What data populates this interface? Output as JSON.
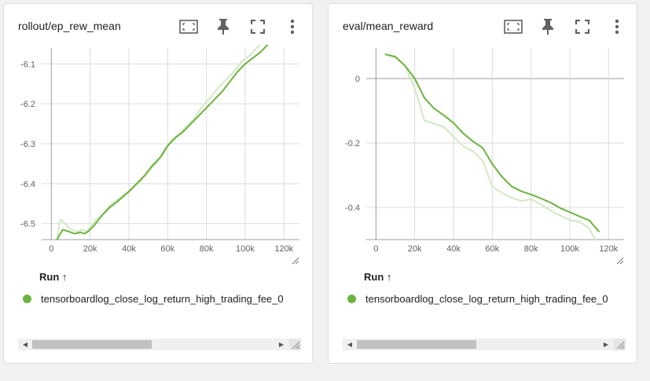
{
  "colors": {
    "series": "#6db33f",
    "series_light": "#d3e8c4",
    "grid": "#dcdcdc",
    "axis": "#9e9e9e",
    "tick_text": "#616161"
  },
  "toolbar_icons": [
    "fit-domain-icon",
    "pin-icon",
    "fullscreen-icon",
    "more-vert-icon"
  ],
  "cards": [
    {
      "title": "rollout/ep_rew_mean",
      "run_header": "Run ↑",
      "run_name": "tensorboardlog_close_log_return_high_trading_fee_0",
      "chart_data": {
        "type": "line",
        "xlabel": "",
        "ylabel": "",
        "xlim": [
          -5000,
          128000
        ],
        "ylim": [
          -6.54,
          -6.06
        ],
        "x_ticks": [
          0,
          20000,
          40000,
          60000,
          80000,
          100000,
          120000
        ],
        "x_tick_labels": [
          "0",
          "20k",
          "40k",
          "60k",
          "80k",
          "100k",
          "120k"
        ],
        "y_ticks": [
          -6.1,
          -6.2,
          -6.3,
          -6.4,
          -6.5
        ],
        "y_tick_labels": [
          "-6.1",
          "-6.2",
          "-6.3",
          "-6.4",
          "-6.5"
        ],
        "grid": true,
        "series": [
          {
            "role": "raw",
            "x": [
              3000,
              4000,
              5000,
              7000,
              10000,
              14000,
              16000,
              18000,
              20000,
              23000,
              26000,
              30000,
              34000,
              38000,
              42000,
              46000,
              50000,
              54000,
              58000,
              62000,
              66000,
              70000,
              74000,
              78000,
              82000,
              86000,
              90000,
              94000,
              98000,
              102000,
              106000,
              110000,
              114000,
              118000
            ],
            "y": [
              -6.54,
              -6.5,
              -6.49,
              -6.5,
              -6.515,
              -6.52,
              -6.515,
              -6.52,
              -6.51,
              -6.49,
              -6.48,
              -6.455,
              -6.44,
              -6.425,
              -6.41,
              -6.395,
              -6.37,
              -6.35,
              -6.325,
              -6.29,
              -6.275,
              -6.255,
              -6.235,
              -6.205,
              -6.185,
              -6.16,
              -6.14,
              -6.12,
              -6.095,
              -6.08,
              -6.06,
              -6.04,
              -6.025,
              -6.02
            ]
          },
          {
            "role": "smoothed",
            "x": [
              3000,
              4000,
              6000,
              9000,
              12000,
              15000,
              17000,
              19000,
              22000,
              26000,
              30000,
              34000,
              40000,
              44000,
              48000,
              52000,
              56000,
              60000,
              64000,
              68000,
              72000,
              76000,
              80000,
              84000,
              88000,
              92000,
              96000,
              100000,
              104000,
              108000,
              112000,
              116000,
              118000
            ],
            "y": [
              -6.54,
              -6.53,
              -6.515,
              -6.52,
              -6.525,
              -6.522,
              -6.525,
              -6.52,
              -6.505,
              -6.48,
              -6.46,
              -6.445,
              -6.42,
              -6.4,
              -6.38,
              -6.355,
              -6.335,
              -6.305,
              -6.285,
              -6.27,
              -6.25,
              -6.23,
              -6.21,
              -6.19,
              -6.17,
              -6.145,
              -6.12,
              -6.1,
              -6.085,
              -6.07,
              -6.05,
              -6.035,
              -6.03
            ]
          }
        ]
      }
    },
    {
      "title": "eval/mean_reward",
      "run_header": "Run ↑",
      "run_name": "tensorboardlog_close_log_return_high_trading_fee_0",
      "chart_data": {
        "type": "line",
        "xlabel": "",
        "ylabel": "",
        "xlim": [
          -5000,
          128000
        ],
        "ylim": [
          -0.5,
          0.095
        ],
        "x_ticks": [
          0,
          20000,
          40000,
          60000,
          80000,
          100000,
          120000
        ],
        "x_tick_labels": [
          "0",
          "20k",
          "40k",
          "60k",
          "80k",
          "100k",
          "120k"
        ],
        "y_ticks": [
          0,
          -0.2,
          -0.4
        ],
        "y_tick_labels": [
          "0",
          "-0.2",
          "-0.4"
        ],
        "grid": true,
        "series": [
          {
            "role": "raw",
            "x": [
              5000,
              10000,
              15000,
              20000,
              25000,
              30000,
              35000,
              40000,
              45000,
              50000,
              55000,
              60000,
              65000,
              70000,
              75000,
              80000,
              85000,
              90000,
              95000,
              100000,
              105000,
              110000,
              113000
            ],
            "y": [
              0.075,
              0.07,
              0.04,
              -0.03,
              -0.13,
              -0.14,
              -0.15,
              -0.18,
              -0.21,
              -0.225,
              -0.255,
              -0.335,
              -0.355,
              -0.37,
              -0.38,
              -0.375,
              -0.39,
              -0.41,
              -0.425,
              -0.44,
              -0.445,
              -0.465,
              -0.5
            ]
          },
          {
            "role": "smoothed",
            "x": [
              5000,
              10000,
              15000,
              20000,
              25000,
              30000,
              35000,
              40000,
              45000,
              50000,
              55000,
              60000,
              65000,
              70000,
              75000,
              80000,
              85000,
              90000,
              95000,
              100000,
              105000,
              110000,
              115000
            ],
            "y": [
              0.075,
              0.067,
              0.04,
              0.0,
              -0.06,
              -0.093,
              -0.114,
              -0.138,
              -0.17,
              -0.195,
              -0.215,
              -0.265,
              -0.305,
              -0.335,
              -0.35,
              -0.36,
              -0.372,
              -0.385,
              -0.402,
              -0.415,
              -0.428,
              -0.44,
              -0.475
            ]
          }
        ]
      }
    }
  ]
}
